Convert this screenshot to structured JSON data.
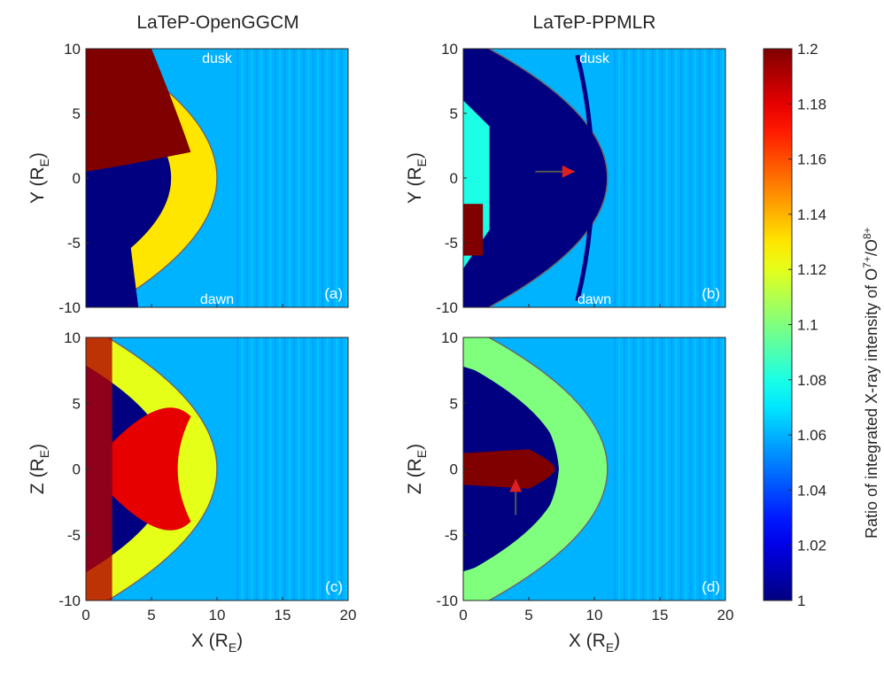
{
  "figure": {
    "column_titles": [
      "LaTeP-OpenGGCM",
      "LaTeP-PPMLR"
    ],
    "colorbar": {
      "label_prefix": "Ratio of integrated X-ray intensity of O",
      "label_sup1": "7+",
      "label_mid": "/O",
      "label_sup2": "8+",
      "min": 1.0,
      "max": 1.2,
      "ticks": [
        "1",
        "1.02",
        "1.04",
        "1.06",
        "1.08",
        "1.1",
        "1.12",
        "1.14",
        "1.16",
        "1.18",
        "1.2"
      ],
      "colormap": "jet"
    }
  },
  "chart_data": [
    {
      "type": "heatmap",
      "panel_label": "(a)",
      "model": "LaTeP-OpenGGCM",
      "xlabel": "X (R",
      "xlabel_sub": "E",
      "ylabel": "Y (R",
      "ylabel_sub": "E",
      "xlim": [
        0,
        20
      ],
      "ylim": [
        -10,
        10
      ],
      "xticks": [
        "0",
        "5",
        "10",
        "15",
        "20"
      ],
      "yticks": [
        "10",
        "5",
        "0",
        "-5",
        "-10"
      ],
      "show_xticks": false,
      "annotations": [
        {
          "text": "dusk",
          "x": 10,
          "y": 9.3
        },
        {
          "text": "dawn",
          "x": 10,
          "y": -9.3
        }
      ],
      "colorbar_range": [
        1.0,
        1.2
      ],
      "background_ratio": 1.06,
      "magnetopause_ratio": 1.13,
      "bow_shock_x_subsolar": 10.0,
      "interior_high_ratio": 1.2,
      "interior_low_ratio": 1.0
    },
    {
      "type": "heatmap",
      "panel_label": "(b)",
      "model": "LaTeP-PPMLR",
      "xlabel": "X (R",
      "xlabel_sub": "E",
      "ylabel": "Y (R",
      "ylabel_sub": "E",
      "xlim": [
        0,
        20
      ],
      "ylim": [
        -10,
        10
      ],
      "xticks": [
        "0",
        "5",
        "10",
        "15",
        "20"
      ],
      "yticks": [
        "10",
        "5",
        "0",
        "-5",
        "-10"
      ],
      "show_xticks": false,
      "annotations": [
        {
          "text": "dusk",
          "x": 10,
          "y": 9.3
        },
        {
          "text": "dawn",
          "x": 10,
          "y": -9.3
        }
      ],
      "arrow": {
        "from": [
          5.5,
          0.5
        ],
        "to": [
          8.5,
          0.5
        ],
        "color": "#e02020"
      },
      "colorbar_range": [
        1.0,
        1.2
      ],
      "background_ratio": 1.06,
      "magnetopause_ratio": 1.0,
      "bow_shock_x_subsolar": 11.0,
      "interior_high_ratio": 1.2,
      "interior_low_ratio": 1.0
    },
    {
      "type": "heatmap",
      "panel_label": "(c)",
      "model": "LaTeP-OpenGGCM",
      "xlabel": "X (R",
      "xlabel_sub": "E",
      "ylabel": "Z (R",
      "ylabel_sub": "E",
      "xlim": [
        0,
        20
      ],
      "ylim": [
        -10,
        10
      ],
      "xticks": [
        "0",
        "5",
        "10",
        "15",
        "20"
      ],
      "yticks": [
        "10",
        "5",
        "0",
        "-5",
        "-10"
      ],
      "show_xticks": true,
      "annotations": [],
      "colorbar_range": [
        1.0,
        1.2
      ],
      "background_ratio": 1.06,
      "magnetopause_ratio": 1.12,
      "bow_shock_x_subsolar": 10.0,
      "interior_high_ratio": 1.18,
      "interior_low_ratio": 1.0
    },
    {
      "type": "heatmap",
      "panel_label": "(d)",
      "model": "LaTeP-PPMLR",
      "xlabel": "X (R",
      "xlabel_sub": "E",
      "ylabel": "Z (R",
      "ylabel_sub": "E",
      "xlim": [
        0,
        20
      ],
      "ylim": [
        -10,
        10
      ],
      "xticks": [
        "0",
        "5",
        "10",
        "15",
        "20"
      ],
      "yticks": [
        "10",
        "5",
        "0",
        "-5",
        "-10"
      ],
      "show_xticks": true,
      "annotations": [],
      "arrow": {
        "from": [
          4,
          -3.5
        ],
        "to": [
          4,
          -0.8
        ],
        "color": "#e02020"
      },
      "colorbar_range": [
        1.0,
        1.2
      ],
      "background_ratio": 1.06,
      "magnetopause_ratio": 1.1,
      "bow_shock_x_subsolar": 11.0,
      "interior_high_ratio": 1.2,
      "interior_low_ratio": 1.0
    }
  ]
}
